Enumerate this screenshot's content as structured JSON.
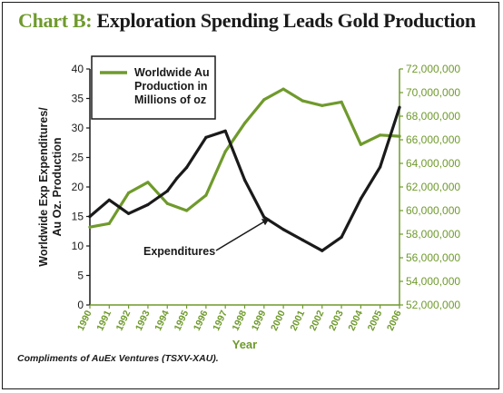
{
  "title_prefix": "Chart B:",
  "title_main": " Exploration Spending Leads Gold Production",
  "credit": "Compliments of AuEx Ventures (TSXV-XAU).",
  "colors": {
    "production": "#6f9a2c",
    "expenditures": "#1a1a1a",
    "frame": "#1a1a1a"
  },
  "chart_data": {
    "type": "line",
    "title": "Chart B: Exploration Spending Leads Gold Production",
    "xlabel": "Year",
    "ylabel_left_lines": [
      "Worldwide Exp Expenditures/",
      "Au Oz. Production"
    ],
    "ylabel_left": "Worldwide Exp Expenditures/ Au Oz. Production",
    "ylim_left": [
      0,
      40
    ],
    "yticks_left": [
      "0",
      "5",
      "10",
      "15",
      "20",
      "25",
      "30",
      "35",
      "40"
    ],
    "ylim_right": [
      52000000,
      72000000
    ],
    "yticks_right": [
      "52,000,000",
      "54,000,000",
      "56,000,000",
      "58,000,000",
      "60,000,000",
      "62,000,000",
      "64,000,000",
      "66,000,000",
      "68,000,000",
      "70,000,000",
      "72,000,000"
    ],
    "x": [
      1990,
      1991,
      1992,
      1993,
      1994,
      1995,
      1996,
      1997,
      1998,
      1999,
      2000,
      2001,
      2002,
      2003,
      2004,
      2005,
      2006
    ],
    "x_tick_labels": [
      "1990",
      "1991",
      "1992",
      "1993",
      "1994",
      "1995",
      "1996",
      "1997",
      "1998",
      "1999",
      "2000",
      "2001",
      "2002",
      "2003",
      "2004",
      "2005",
      "2006"
    ],
    "grid": false,
    "legend_position": "top-left",
    "series": [
      {
        "name": "Worldwide Au Production in Millions of oz",
        "legend_lines": [
          "Worldwide Au",
          "Production in",
          "Millions of oz"
        ],
        "axis": "right",
        "color": "#6f9a2c",
        "x": [
          1990,
          1991,
          1992,
          1993,
          1994,
          1995,
          1996,
          1997,
          1998,
          1999,
          2000,
          2001,
          2002,
          2003,
          2004,
          2005,
          2006
        ],
        "values": [
          58600000,
          58900000,
          61500000,
          62400000,
          60600000,
          60000000,
          61300000,
          65000000,
          67400000,
          69400000,
          70300000,
          69300000,
          68900000,
          69200000,
          65600000,
          66400000,
          66300000
        ]
      },
      {
        "name": "Expenditures",
        "axis": "left",
        "color": "#1a1a1a",
        "x": [
          1990,
          1991,
          1992,
          1993,
          1994,
          1994.5,
          1995,
          1996,
          1997,
          1998,
          1999,
          2000,
          2001,
          2002,
          2003,
          2004,
          2005,
          2006
        ],
        "values": [
          15.0,
          17.8,
          15.5,
          17.0,
          19.3,
          21.5,
          23.3,
          28.4,
          29.5,
          21.2,
          14.9,
          12.8,
          11.0,
          9.2,
          11.5,
          18.0,
          23.4,
          33.5
        ]
      }
    ],
    "annotations": [
      {
        "text": "Expenditures",
        "points_to": {
          "x": 1999.2,
          "y": 14.5
        }
      }
    ]
  }
}
